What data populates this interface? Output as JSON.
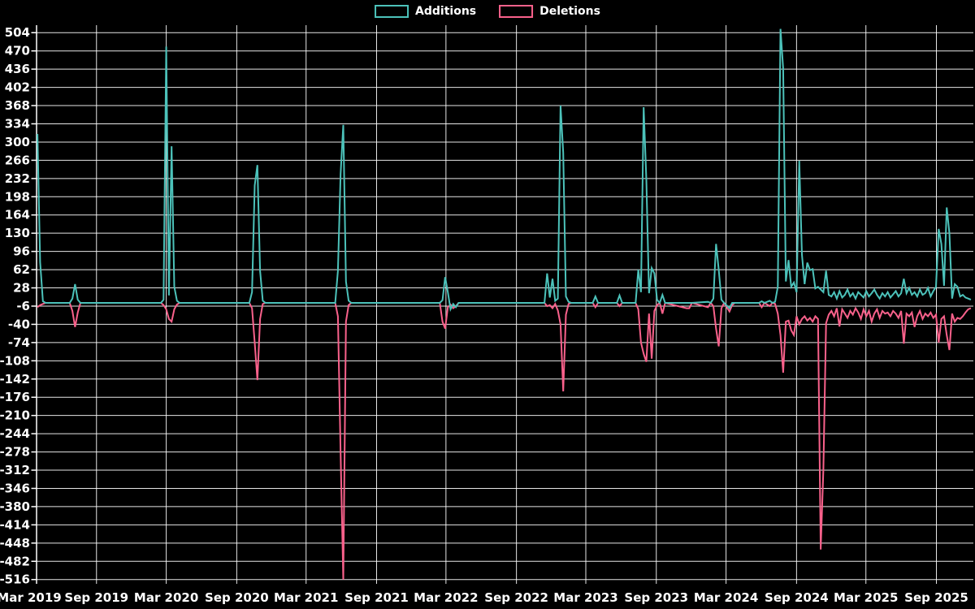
{
  "legend": {
    "items": [
      {
        "label": "Additions",
        "color": "#4cc2ba"
      },
      {
        "label": "Deletions",
        "color": "#f9618b"
      }
    ]
  },
  "chart_data": {
    "type": "line",
    "title": "",
    "xlabel": "",
    "ylabel": "",
    "background_color": "#000000",
    "grid_color": "#ffffff",
    "text_color": "#ffffff",
    "grid": true,
    "legend_position": "top-center",
    "y_ticks": [
      504,
      470,
      436,
      402,
      368,
      334,
      300,
      266,
      232,
      198,
      164,
      130,
      96,
      62,
      28,
      -6,
      -40,
      -74,
      -108,
      -142,
      -176,
      -210,
      -244,
      -278,
      -312,
      -346,
      -380,
      -414,
      -448,
      -482,
      -516
    ],
    "ylim": [
      -524,
      518
    ],
    "x_ticks": [
      {
        "label": "Mar 2019",
        "date": "2019-03-01"
      },
      {
        "label": "Sep 2019",
        "date": "2019-09-01"
      },
      {
        "label": "Mar 2020",
        "date": "2020-03-01"
      },
      {
        "label": "Sep 2020",
        "date": "2020-09-01"
      },
      {
        "label": "Mar 2021",
        "date": "2021-03-01"
      },
      {
        "label": "Sep 2021",
        "date": "2021-09-01"
      },
      {
        "label": "Mar 2022",
        "date": "2022-03-01"
      },
      {
        "label": "Sep 2022",
        "date": "2022-09-01"
      },
      {
        "label": "Mar 2023",
        "date": "2023-03-01"
      },
      {
        "label": "Sep 2023",
        "date": "2023-09-01"
      },
      {
        "label": "Mar 2024",
        "date": "2024-03-01"
      },
      {
        "label": "Sep 2024",
        "date": "2024-09-01"
      },
      {
        "label": "Mar 2025",
        "date": "2025-03-01"
      },
      {
        "label": "Sep 2025",
        "date": "2025-09-01"
      }
    ],
    "series": [
      {
        "name": "Additions",
        "color": "#4cc2ba",
        "column": 1
      },
      {
        "name": "Deletions",
        "color": "#f9618b",
        "column": 2
      }
    ],
    "rows": [
      [
        "2019-03-31",
        315,
        -8
      ],
      [
        "2019-04-07",
        76,
        -4
      ],
      [
        "2019-04-14",
        3,
        -2
      ],
      [
        "2019-04-21",
        0,
        0
      ],
      [
        "2019-06-23",
        0,
        0
      ],
      [
        "2019-06-30",
        8,
        -15
      ],
      [
        "2019-07-07",
        35,
        -45
      ],
      [
        "2019-07-14",
        6,
        -18
      ],
      [
        "2019-07-21",
        0,
        0
      ],
      [
        "2020-02-16",
        0,
        0
      ],
      [
        "2020-02-23",
        6,
        -4
      ],
      [
        "2020-03-01",
        478,
        -12
      ],
      [
        "2020-03-08",
        14,
        -30
      ],
      [
        "2020-03-15",
        292,
        -35
      ],
      [
        "2020-03-22",
        30,
        -12
      ],
      [
        "2020-03-29",
        4,
        -3
      ],
      [
        "2020-04-05",
        0,
        0
      ],
      [
        "2020-10-04",
        0,
        0
      ],
      [
        "2020-10-11",
        20,
        -10
      ],
      [
        "2020-10-18",
        219,
        -74
      ],
      [
        "2020-10-25",
        257,
        -144
      ],
      [
        "2020-11-01",
        60,
        -30
      ],
      [
        "2020-11-08",
        4,
        -2
      ],
      [
        "2020-11-15",
        0,
        0
      ],
      [
        "2021-05-16",
        0,
        0
      ],
      [
        "2021-05-23",
        60,
        -25
      ],
      [
        "2021-05-30",
        240,
        -280
      ],
      [
        "2021-06-06",
        332,
        -516
      ],
      [
        "2021-06-13",
        40,
        -35
      ],
      [
        "2021-06-20",
        4,
        -4
      ],
      [
        "2021-06-27",
        0,
        0
      ],
      [
        "2022-02-13",
        0,
        0
      ],
      [
        "2022-02-20",
        5,
        -35
      ],
      [
        "2022-02-27",
        48,
        -48
      ],
      [
        "2022-03-06",
        20,
        -8
      ],
      [
        "2022-03-13",
        -12,
        -3
      ],
      [
        "2022-03-20",
        -2,
        -10
      ],
      [
        "2022-03-27",
        -8,
        -6
      ],
      [
        "2022-04-03",
        0,
        0
      ],
      [
        "2022-11-13",
        0,
        0
      ],
      [
        "2022-11-20",
        55,
        -6
      ],
      [
        "2022-11-27",
        10,
        -4
      ],
      [
        "2022-12-04",
        45,
        -10
      ],
      [
        "2022-12-11",
        4,
        -2
      ],
      [
        "2022-12-18",
        8,
        -14
      ],
      [
        "2022-12-25",
        368,
        -40
      ],
      [
        "2023-01-01",
        280,
        -165
      ],
      [
        "2023-01-08",
        12,
        -22
      ],
      [
        "2023-01-15",
        2,
        -2
      ],
      [
        "2023-01-22",
        0,
        0
      ],
      [
        "2023-03-19",
        0,
        0
      ],
      [
        "2023-03-26",
        12,
        -8
      ],
      [
        "2023-04-02",
        0,
        0
      ],
      [
        "2023-05-21",
        0,
        0
      ],
      [
        "2023-05-28",
        14,
        -6
      ],
      [
        "2023-06-04",
        0,
        0
      ],
      [
        "2023-07-09",
        0,
        0
      ],
      [
        "2023-07-16",
        62,
        -12
      ],
      [
        "2023-07-23",
        20,
        -74
      ],
      [
        "2023-07-30",
        365,
        -95
      ],
      [
        "2023-08-06",
        230,
        -110
      ],
      [
        "2023-08-13",
        18,
        -20
      ],
      [
        "2023-08-20",
        65,
        -104
      ],
      [
        "2023-08-27",
        55,
        -15
      ],
      [
        "2023-09-03",
        6,
        -4
      ],
      [
        "2023-09-10",
        0,
        0
      ],
      [
        "2023-09-17",
        15,
        -20
      ],
      [
        "2023-09-24",
        0,
        0
      ],
      [
        "2023-11-19",
        0,
        -10
      ],
      [
        "2023-11-26",
        0,
        -10
      ],
      [
        "2023-12-03",
        0,
        0
      ],
      [
        "2024-01-14",
        2,
        -8
      ],
      [
        "2024-01-21",
        0,
        0
      ],
      [
        "2024-01-28",
        8,
        -6
      ],
      [
        "2024-02-04",
        110,
        -48
      ],
      [
        "2024-02-11",
        62,
        -81
      ],
      [
        "2024-02-18",
        6,
        -10
      ],
      [
        "2024-02-25",
        0,
        0
      ],
      [
        "2024-03-10",
        -10,
        -16
      ],
      [
        "2024-03-17",
        0,
        -4
      ],
      [
        "2024-03-24",
        0,
        0
      ],
      [
        "2024-05-26",
        0,
        0
      ],
      [
        "2024-06-02",
        3,
        -8
      ],
      [
        "2024-06-09",
        0,
        0
      ],
      [
        "2024-06-23",
        4,
        -6
      ],
      [
        "2024-06-30",
        0,
        0
      ],
      [
        "2024-07-07",
        2,
        -2
      ],
      [
        "2024-07-14",
        30,
        -20
      ],
      [
        "2024-07-21",
        511,
        -60
      ],
      [
        "2024-07-28",
        437,
        -130
      ],
      [
        "2024-08-04",
        40,
        -35
      ],
      [
        "2024-08-11",
        80,
        -33
      ],
      [
        "2024-08-18",
        30,
        -51
      ],
      [
        "2024-08-25",
        38,
        -60
      ],
      [
        "2024-09-01",
        20,
        -25
      ],
      [
        "2024-09-08",
        265,
        -40
      ],
      [
        "2024-09-15",
        90,
        -30
      ],
      [
        "2024-09-22",
        35,
        -25
      ],
      [
        "2024-09-29",
        75,
        -33
      ],
      [
        "2024-10-06",
        61,
        -28
      ],
      [
        "2024-10-13",
        63,
        -35
      ],
      [
        "2024-10-20",
        27,
        -25
      ],
      [
        "2024-10-27",
        30,
        -30
      ],
      [
        "2024-11-03",
        25,
        -460
      ],
      [
        "2024-11-10",
        20,
        -310
      ],
      [
        "2024-11-17",
        60,
        -38
      ],
      [
        "2024-11-24",
        15,
        -22
      ],
      [
        "2024-12-01",
        12,
        -15
      ],
      [
        "2024-12-08",
        20,
        -25
      ],
      [
        "2024-12-15",
        8,
        -10
      ],
      [
        "2024-12-22",
        22,
        -44
      ],
      [
        "2024-12-29",
        10,
        -12
      ],
      [
        "2025-01-05",
        15,
        -20
      ],
      [
        "2025-01-12",
        25,
        -28
      ],
      [
        "2025-01-19",
        12,
        -15
      ],
      [
        "2025-01-26",
        18,
        -22
      ],
      [
        "2025-02-02",
        8,
        -10
      ],
      [
        "2025-02-09",
        20,
        -18
      ],
      [
        "2025-02-16",
        15,
        -30
      ],
      [
        "2025-02-23",
        10,
        -12
      ],
      [
        "2025-03-02",
        22,
        -25
      ],
      [
        "2025-03-09",
        12,
        -15
      ],
      [
        "2025-03-16",
        18,
        -35
      ],
      [
        "2025-03-23",
        25,
        -20
      ],
      [
        "2025-03-30",
        15,
        -12
      ],
      [
        "2025-04-06",
        8,
        -28
      ],
      [
        "2025-04-13",
        18,
        -15
      ],
      [
        "2025-04-20",
        12,
        -20
      ],
      [
        "2025-04-27",
        20,
        -18
      ],
      [
        "2025-05-04",
        10,
        -25
      ],
      [
        "2025-05-11",
        16,
        -15
      ],
      [
        "2025-05-18",
        22,
        -20
      ],
      [
        "2025-05-25",
        12,
        -28
      ],
      [
        "2025-06-01",
        18,
        -15
      ],
      [
        "2025-06-08",
        45,
        -76
      ],
      [
        "2025-06-15",
        18,
        -20
      ],
      [
        "2025-06-22",
        28,
        -25
      ],
      [
        "2025-06-29",
        15,
        -18
      ],
      [
        "2025-07-06",
        20,
        -45
      ],
      [
        "2025-07-13",
        12,
        -25
      ],
      [
        "2025-07-20",
        25,
        -15
      ],
      [
        "2025-07-27",
        15,
        -30
      ],
      [
        "2025-08-03",
        18,
        -20
      ],
      [
        "2025-08-10",
        28,
        -25
      ],
      [
        "2025-08-17",
        12,
        -18
      ],
      [
        "2025-08-24",
        22,
        -28
      ],
      [
        "2025-08-31",
        30,
        -22
      ],
      [
        "2025-09-07",
        138,
        -74
      ],
      [
        "2025-09-14",
        110,
        -30
      ],
      [
        "2025-09-21",
        32,
        -25
      ],
      [
        "2025-09-28",
        178,
        -60
      ],
      [
        "2025-10-05",
        130,
        -88
      ],
      [
        "2025-10-12",
        8,
        -20
      ],
      [
        "2025-10-19",
        35,
        -35
      ],
      [
        "2025-10-26",
        30,
        -28
      ],
      [
        "2025-11-02",
        12,
        -30
      ],
      [
        "2025-11-09",
        15,
        -25
      ],
      [
        "2025-11-16",
        10,
        -18
      ],
      [
        "2025-11-23",
        8,
        -12
      ],
      [
        "2025-11-30",
        6,
        -10
      ]
    ]
  }
}
